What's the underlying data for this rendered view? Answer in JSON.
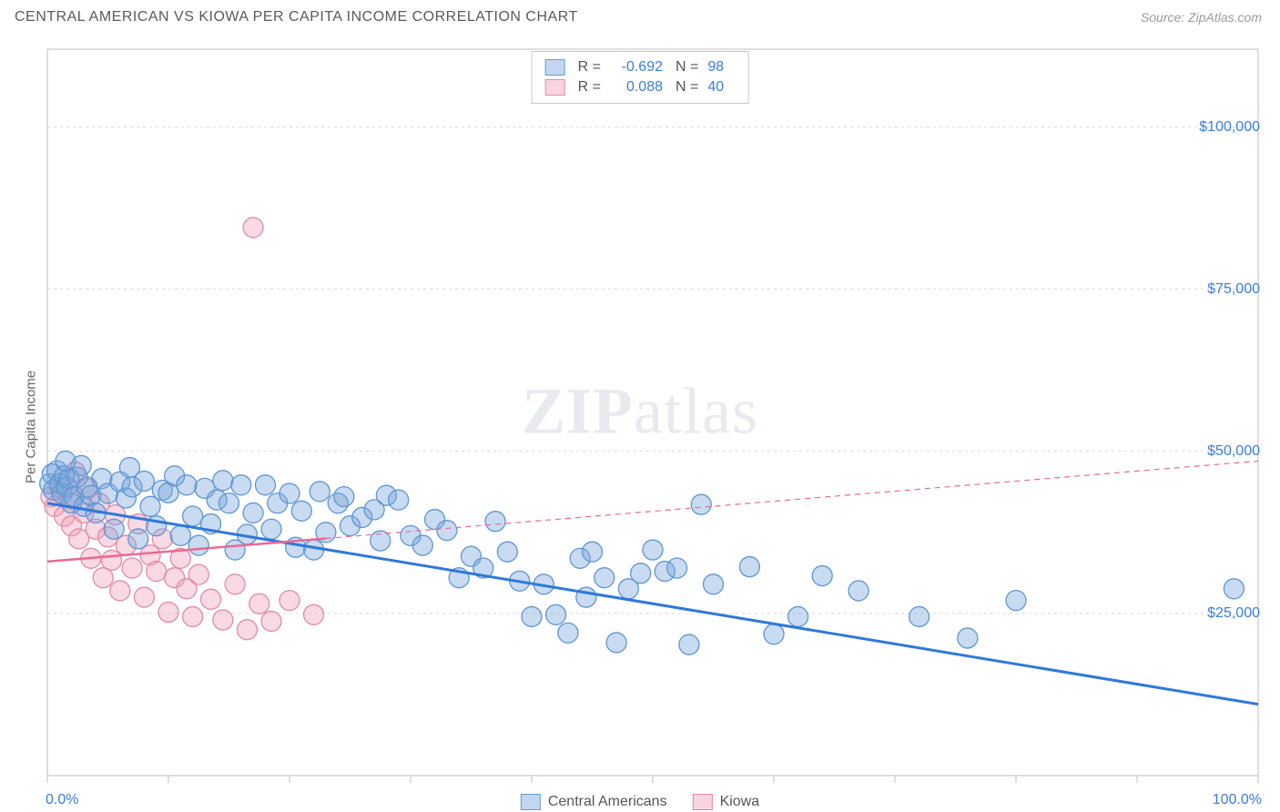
{
  "title": "CENTRAL AMERICAN VS KIOWA PER CAPITA INCOME CORRELATION CHART",
  "source": "Source: ZipAtlas.com",
  "watermark": {
    "prefix": "ZIP",
    "suffix": "atlas"
  },
  "chart": {
    "type": "scatter",
    "ylabel": "Per Capita Income",
    "xlim": [
      0,
      100
    ],
    "ylim": [
      0,
      112000
    ],
    "xtick_positions": [
      0,
      10,
      20,
      30,
      40,
      50,
      60,
      70,
      80,
      90,
      100
    ],
    "xtick_labels": {
      "0": "0.0%",
      "100": "100.0%"
    },
    "ytick_grid": [
      25000,
      50000,
      75000,
      100000
    ],
    "ytick_labels": [
      "$25,000",
      "$50,000",
      "$75,000",
      "$100,000"
    ],
    "background_color": "#ffffff",
    "grid_color": "#d8d8d8",
    "axis_color": "#bfbfbf",
    "tick_color": "#bfbfbf",
    "label_color": "#3b7dd8"
  },
  "stats_box": {
    "rows": [
      {
        "swatch_fill": "rgba(120,165,220,0.45)",
        "swatch_stroke": "#6a9bd4",
        "r_label": "R =",
        "r": "-0.692",
        "n_label": "N =",
        "n": "98"
      },
      {
        "swatch_fill": "rgba(240,160,185,0.45)",
        "swatch_stroke": "#e48aa8",
        "r_label": "R =",
        "r": "0.088",
        "n_label": "N =",
        "n": "40"
      }
    ]
  },
  "legend": {
    "items": [
      {
        "label": "Central Americans",
        "fill": "rgba(120,165,220,0.45)",
        "stroke": "#6a9bd4"
      },
      {
        "label": "Kiowa",
        "fill": "rgba(240,160,185,0.45)",
        "stroke": "#e48aa8"
      }
    ]
  },
  "series": [
    {
      "name": "Central Americans",
      "color_fill": "rgba(120,165,220,0.40)",
      "color_stroke": "#5e96d4",
      "marker_r": 11,
      "trend": {
        "x1": 0,
        "y1": 42000,
        "x2": 100,
        "y2": 11000,
        "color": "#2f79d8",
        "width": 3,
        "dash": ""
      },
      "points": [
        [
          0.2,
          45000
        ],
        [
          0.4,
          46500
        ],
        [
          0.5,
          44000
        ],
        [
          0.8,
          47000
        ],
        [
          1.0,
          45000
        ],
        [
          1.2,
          43500
        ],
        [
          1.4,
          46200
        ],
        [
          1.6,
          44500
        ],
        [
          1.8,
          45800
        ],
        [
          2.0,
          42000
        ],
        [
          2.2,
          43000
        ],
        [
          2.5,
          46000
        ],
        [
          2.8,
          47800
        ],
        [
          3.0,
          41500
        ],
        [
          3.3,
          44500
        ],
        [
          3.6,
          43200
        ],
        [
          4.0,
          40500
        ],
        [
          4.5,
          45800
        ],
        [
          5.0,
          43500
        ],
        [
          5.5,
          38000
        ],
        [
          6.0,
          45300
        ],
        [
          6.5,
          42800
        ],
        [
          7.0,
          44500
        ],
        [
          7.5,
          36500
        ],
        [
          8.0,
          45400
        ],
        [
          8.5,
          41500
        ],
        [
          9.0,
          38500
        ],
        [
          9.5,
          44000
        ],
        [
          10,
          43600
        ],
        [
          10.5,
          46200
        ],
        [
          11,
          37000
        ],
        [
          11.5,
          44800
        ],
        [
          12,
          40000
        ],
        [
          12.5,
          35500
        ],
        [
          13,
          44300
        ],
        [
          13.5,
          38800
        ],
        [
          14,
          42500
        ],
        [
          14.5,
          45500
        ],
        [
          15,
          42000
        ],
        [
          15.5,
          34800
        ],
        [
          16,
          44800
        ],
        [
          16.5,
          37200
        ],
        [
          17,
          40500
        ],
        [
          18,
          44800
        ],
        [
          18.5,
          38000
        ],
        [
          19,
          42000
        ],
        [
          20,
          43500
        ],
        [
          20.5,
          35200
        ],
        [
          21,
          40800
        ],
        [
          22,
          34800
        ],
        [
          22.5,
          43800
        ],
        [
          23,
          37500
        ],
        [
          24,
          42000
        ],
        [
          24.5,
          43000
        ],
        [
          25,
          38500
        ],
        [
          26,
          39800
        ],
        [
          27,
          41000
        ],
        [
          27.5,
          36200
        ],
        [
          28,
          43200
        ],
        [
          29,
          42500
        ],
        [
          30,
          37000
        ],
        [
          31,
          35500
        ],
        [
          32,
          39500
        ],
        [
          33,
          37800
        ],
        [
          34,
          30500
        ],
        [
          35,
          33800
        ],
        [
          36,
          32000
        ],
        [
          37,
          39200
        ],
        [
          38,
          34500
        ],
        [
          39,
          30000
        ],
        [
          40,
          24500
        ],
        [
          41,
          29500
        ],
        [
          42,
          24800
        ],
        [
          43,
          22000
        ],
        [
          44,
          33500
        ],
        [
          44.5,
          27500
        ],
        [
          45,
          34500
        ],
        [
          46,
          30500
        ],
        [
          47,
          20500
        ],
        [
          48,
          28800
        ],
        [
          49,
          31200
        ],
        [
          50,
          34800
        ],
        [
          51,
          31500
        ],
        [
          52,
          32000
        ],
        [
          53,
          20200
        ],
        [
          54,
          41800
        ],
        [
          55,
          29500
        ],
        [
          58,
          32200
        ],
        [
          60,
          21800
        ],
        [
          62,
          24500
        ],
        [
          64,
          30800
        ],
        [
          67,
          28500
        ],
        [
          72,
          24500
        ],
        [
          76,
          21200
        ],
        [
          80,
          27000
        ],
        [
          98,
          28800
        ],
        [
          1.5,
          48500
        ],
        [
          6.8,
          47500
        ]
      ]
    },
    {
      "name": "Kiowa",
      "color_fill": "rgba(240,160,185,0.40)",
      "color_stroke": "#e28aaa",
      "marker_r": 11,
      "trend": {
        "x1": 0,
        "y1": 33000,
        "x2": 100,
        "y2": 48500,
        "color": "#e86a94",
        "width": 2.5,
        "dash": "6 5",
        "solid_until": 23
      },
      "points": [
        [
          0.3,
          43000
        ],
        [
          0.6,
          41500
        ],
        [
          1.0,
          44500
        ],
        [
          1.4,
          40000
        ],
        [
          1.8,
          42800
        ],
        [
          2.0,
          38500
        ],
        [
          2.3,
          46800
        ],
        [
          2.6,
          36500
        ],
        [
          3.0,
          40500
        ],
        [
          3.3,
          44200
        ],
        [
          3.6,
          33500
        ],
        [
          4.0,
          38000
        ],
        [
          4.3,
          42000
        ],
        [
          4.6,
          30500
        ],
        [
          5.0,
          36800
        ],
        [
          5.3,
          33200
        ],
        [
          5.6,
          40200
        ],
        [
          6.0,
          28500
        ],
        [
          6.5,
          35500
        ],
        [
          7.0,
          32000
        ],
        [
          7.5,
          38800
        ],
        [
          8.0,
          27500
        ],
        [
          8.5,
          34000
        ],
        [
          9.0,
          31500
        ],
        [
          9.5,
          36500
        ],
        [
          10,
          25200
        ],
        [
          10.5,
          30500
        ],
        [
          11,
          33500
        ],
        [
          11.5,
          28800
        ],
        [
          12,
          24500
        ],
        [
          12.5,
          31000
        ],
        [
          13.5,
          27200
        ],
        [
          14.5,
          24000
        ],
        [
          15.5,
          29500
        ],
        [
          16.5,
          22500
        ],
        [
          17.5,
          26500
        ],
        [
          18.5,
          23800
        ],
        [
          20,
          27000
        ],
        [
          22,
          24800
        ],
        [
          17,
          84500
        ]
      ]
    }
  ]
}
